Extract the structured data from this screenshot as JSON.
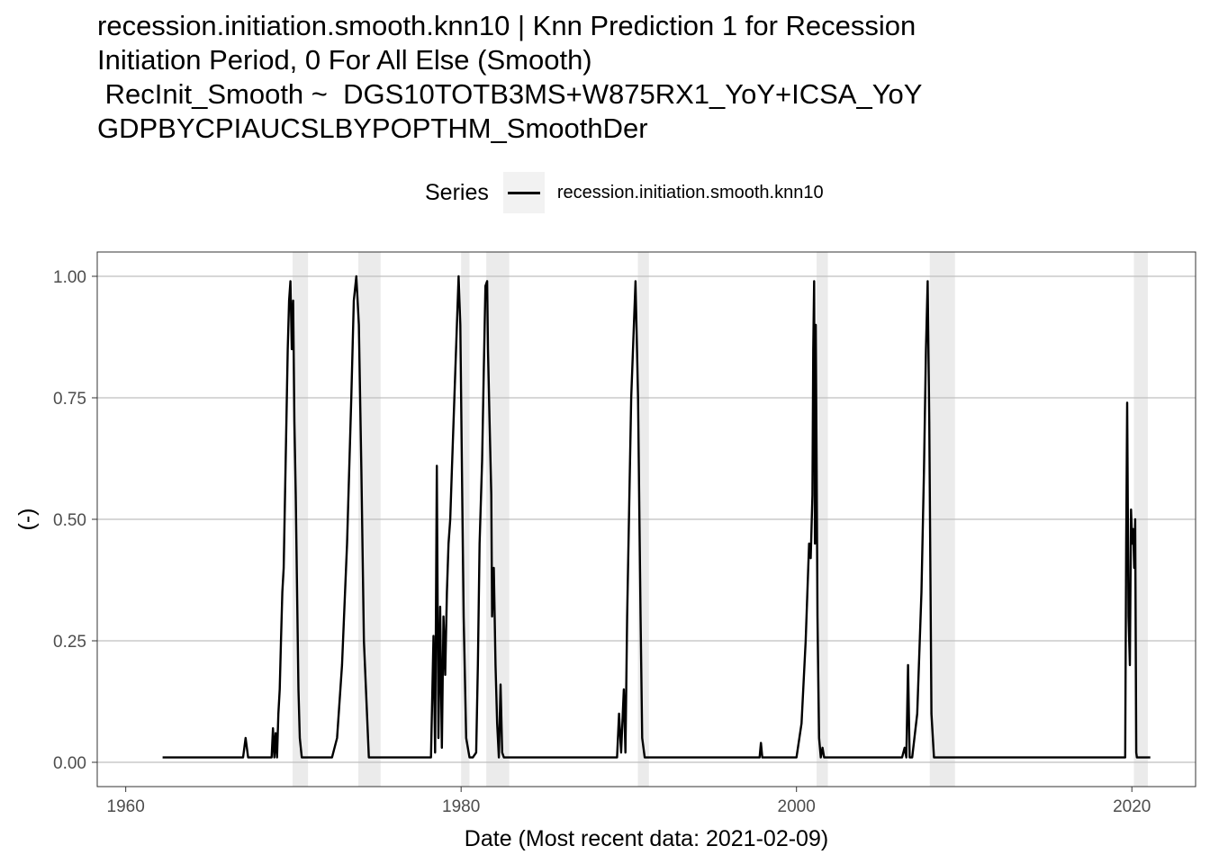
{
  "chart_data": {
    "type": "line",
    "title_lines": [
      "recession.initiation.smooth.knn10 | Knn Prediction 1 for Recession",
      "Initiation Period, 0 For All Else (Smooth)",
      " RecInit_Smooth ~  DGS10TOTB3MS+W875RX1_YoY+ICSA_YoY",
      "GDPBYCPIAUCSLBYPOPTHM_SmoothDer"
    ],
    "xlabel": "Date (Most recent data: 2021-02-09)",
    "ylabel": "(-)",
    "xlim": [
      1958.3,
      2023.8
    ],
    "ylim": [
      -0.05,
      1.05
    ],
    "x_ticks": [
      1960,
      1980,
      2000,
      2020
    ],
    "x_tick_labels": [
      "1960",
      "1980",
      "2000",
      "2020"
    ],
    "y_ticks": [
      0,
      0.25,
      0.5,
      0.75,
      1.0
    ],
    "y_tick_labels": [
      "0.00",
      "0.25",
      "0.50",
      "0.75",
      "1.00"
    ],
    "legend": {
      "title": "Series",
      "position": "top"
    },
    "grid": true,
    "recession_shading": [
      [
        1969.95,
        1970.87
      ],
      [
        1973.87,
        1975.2
      ],
      [
        1980.0,
        1980.5
      ],
      [
        1981.5,
        1982.87
      ],
      [
        1990.54,
        1991.2
      ],
      [
        2001.2,
        2001.87
      ],
      [
        2007.95,
        2009.45
      ],
      [
        2020.12,
        2020.95
      ]
    ],
    "colors": {
      "series": "#000000",
      "shading": "#ebebeb",
      "grid": "#bfbfbf"
    },
    "series": [
      {
        "name": "recession.initiation.smooth.knn10",
        "x": [
          1962.2,
          1967.0,
          1967.15,
          1967.3,
          1968.7,
          1968.78,
          1968.86,
          1968.94,
          1969.02,
          1969.1,
          1969.18,
          1969.26,
          1969.34,
          1969.42,
          1969.5,
          1969.58,
          1969.66,
          1969.74,
          1969.82,
          1969.9,
          1969.98,
          1970.06,
          1970.14,
          1970.22,
          1970.3,
          1970.38,
          1970.5,
          1970.6,
          1972.3,
          1972.6,
          1972.9,
          1973.2,
          1973.45,
          1973.6,
          1973.75,
          1973.9,
          1974.05,
          1974.2,
          1974.5,
          1978.2,
          1978.35,
          1978.45,
          1978.55,
          1978.65,
          1978.75,
          1978.85,
          1978.95,
          1979.05,
          1979.15,
          1979.25,
          1979.35,
          1979.45,
          1979.6,
          1979.75,
          1979.85,
          1979.95,
          1980.05,
          1980.15,
          1980.3,
          1980.5,
          1980.7,
          1980.9,
          1981.0,
          1981.1,
          1981.25,
          1981.35,
          1981.45,
          1981.55,
          1981.6,
          1981.7,
          1981.8,
          1981.85,
          1981.95,
          1982.05,
          1982.15,
          1982.25,
          1982.35,
          1982.45,
          1982.55,
          1982.65,
          1989.3,
          1989.42,
          1989.54,
          1989.7,
          1989.8,
          1989.9,
          1989.98,
          1990.06,
          1990.14,
          1990.25,
          1990.4,
          1990.55,
          1990.7,
          1990.8,
          1990.95,
          1997.8,
          1997.88,
          1997.96,
          2000.0,
          2000.3,
          2000.55,
          2000.75,
          2000.85,
          2000.95,
          2001.0,
          2001.05,
          2001.1,
          2001.15,
          2001.2,
          2001.25,
          2001.35,
          2001.45,
          2001.55,
          2001.65,
          2001.75,
          2006.0,
          2006.3,
          2006.45,
          2006.55,
          2006.65,
          2006.75,
          2006.9,
          2007.2,
          2007.45,
          2007.6,
          2007.72,
          2007.82,
          2007.92,
          2008.05,
          2008.2,
          2019.6,
          2019.66,
          2019.72,
          2019.8,
          2019.88,
          2019.95,
          2020.02,
          2020.08,
          2020.14,
          2020.2,
          2020.26,
          2020.3,
          2020.35,
          2020.45,
          2021.1
        ],
        "y": [
          0.01,
          0.01,
          0.05,
          0.01,
          0.01,
          0.07,
          0.01,
          0.06,
          0.01,
          0.1,
          0.15,
          0.25,
          0.35,
          0.4,
          0.55,
          0.7,
          0.85,
          0.95,
          0.99,
          0.85,
          0.95,
          0.7,
          0.55,
          0.35,
          0.15,
          0.05,
          0.01,
          0.01,
          0.01,
          0.05,
          0.2,
          0.45,
          0.75,
          0.95,
          1.0,
          0.9,
          0.6,
          0.25,
          0.01,
          0.01,
          0.26,
          0.02,
          0.61,
          0.05,
          0.32,
          0.03,
          0.3,
          0.18,
          0.35,
          0.45,
          0.5,
          0.6,
          0.75,
          0.9,
          1.0,
          0.9,
          0.6,
          0.3,
          0.05,
          0.01,
          0.01,
          0.02,
          0.2,
          0.45,
          0.62,
          0.8,
          0.98,
          0.99,
          0.85,
          0.7,
          0.55,
          0.3,
          0.4,
          0.2,
          0.08,
          0.01,
          0.16,
          0.02,
          0.01,
          0.01,
          0.01,
          0.1,
          0.02,
          0.15,
          0.02,
          0.3,
          0.45,
          0.6,
          0.75,
          0.85,
          0.99,
          0.75,
          0.3,
          0.05,
          0.01,
          0.01,
          0.04,
          0.01,
          0.01,
          0.08,
          0.25,
          0.45,
          0.42,
          0.55,
          0.85,
          0.99,
          0.45,
          0.9,
          0.6,
          0.3,
          0.05,
          0.01,
          0.03,
          0.01,
          0.01,
          0.01,
          0.01,
          0.03,
          0.01,
          0.2,
          0.01,
          0.01,
          0.1,
          0.35,
          0.6,
          0.85,
          0.99,
          0.7,
          0.1,
          0.01,
          0.01,
          0.45,
          0.74,
          0.3,
          0.2,
          0.52,
          0.45,
          0.48,
          0.4,
          0.5,
          0.02,
          0.01,
          0.01,
          0.01,
          0.01
        ]
      }
    ]
  }
}
